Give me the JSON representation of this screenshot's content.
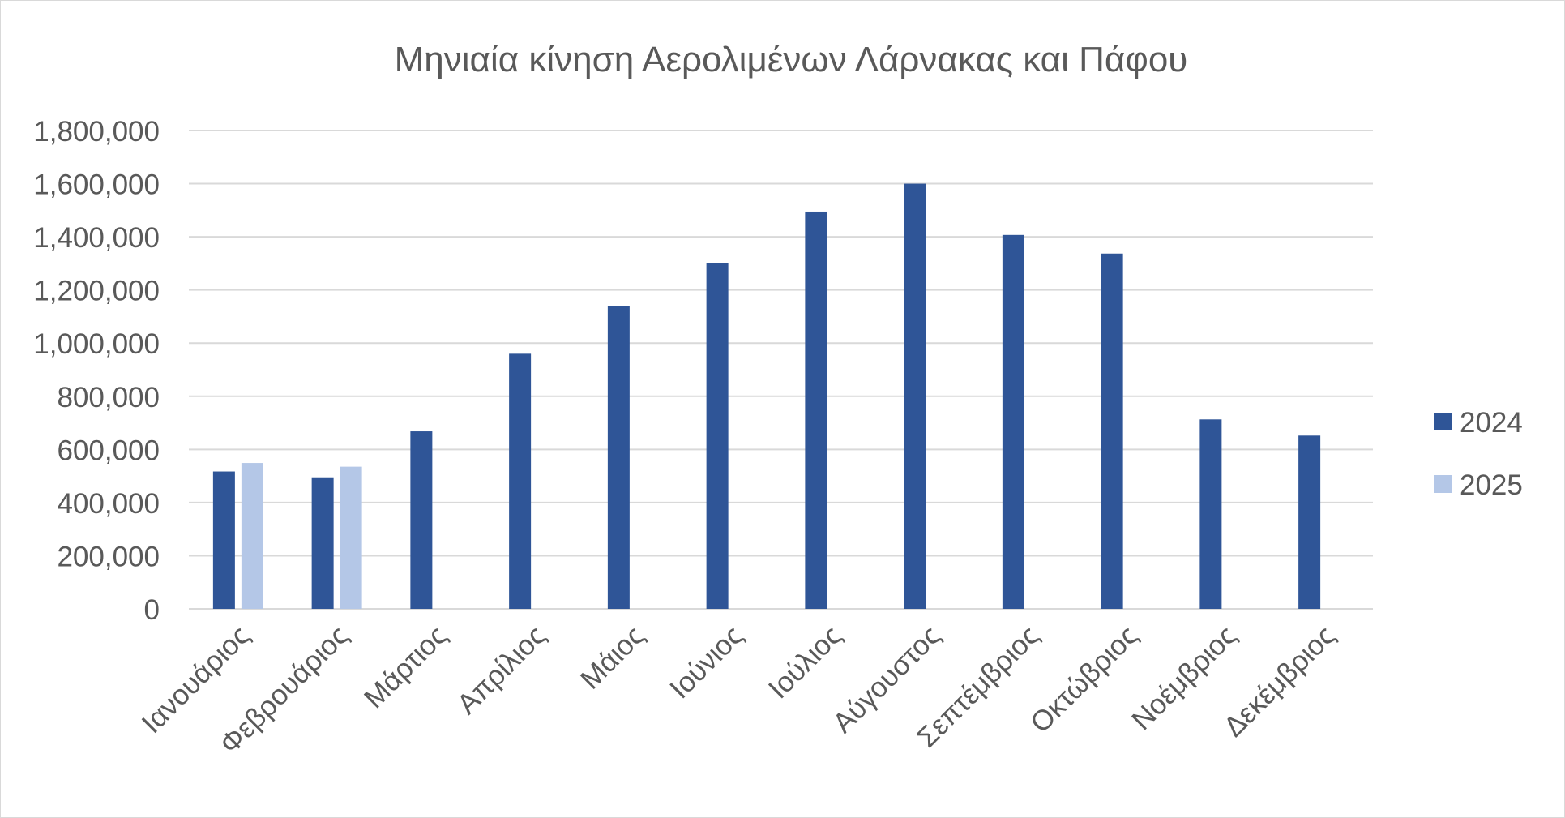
{
  "chart_data": {
    "type": "bar",
    "title": "Μηνιαία κίνηση Αερολιμένων Λάρνακας και Πάφου",
    "categories": [
      "Ιανουάριος",
      "Φεβρουάριος",
      "Μάρτιος",
      "Απρίλιος",
      "Μάιος",
      "Ιούνιος",
      "Ιούλιος",
      "Αύγουστος",
      "Σεπτέμβριος",
      "Οκτώβριος",
      "Νοέμβριος",
      "Δεκέμβριος"
    ],
    "series": [
      {
        "name": "2024",
        "color": "#2f5597",
        "values": [
          517000,
          495000,
          668000,
          960000,
          1140000,
          1300000,
          1495000,
          1600000,
          1407000,
          1337000,
          713000,
          652000
        ]
      },
      {
        "name": "2025",
        "color": "#b4c7e7",
        "values": [
          549000,
          535000,
          null,
          null,
          null,
          null,
          null,
          null,
          null,
          null,
          null,
          null
        ]
      }
    ],
    "yticks": [
      "0",
      "200,000",
      "400,000",
      "600,000",
      "800,000",
      "1,000,000",
      "1,200,000",
      "1,400,000",
      "1,600,000",
      "1,800,000"
    ],
    "ylim": [
      0,
      1800000
    ],
    "xlabel": "",
    "ylabel": "",
    "grid": true,
    "legend_position": "right",
    "gridline_color": "#d9d9d9"
  }
}
